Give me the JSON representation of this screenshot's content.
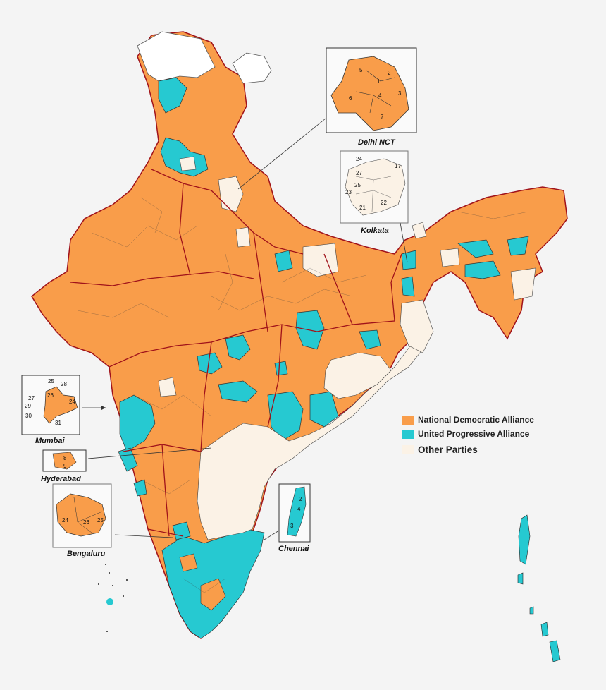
{
  "colors": {
    "nda": "#f99d4a",
    "upa": "#26c9d1",
    "other": "#fbf2e6",
    "no_data": "#ffffff",
    "state_border": "#a0121a",
    "district_border": "#3a3a3a",
    "background": "#f4f4f4"
  },
  "legend": [
    {
      "label": "National Democratic Alliance",
      "color_key": "nda"
    },
    {
      "label": "United Progressive Alliance",
      "color_key": "upa"
    },
    {
      "label": "Other Parties",
      "color_key": "other"
    }
  ],
  "insets": {
    "delhi": {
      "caption": "Delhi NCT",
      "numbers": [
        "5",
        "2",
        "1",
        "6",
        "4",
        "3",
        "7"
      ]
    },
    "kolkata": {
      "caption": "Kolkata",
      "numbers": [
        "24",
        "17",
        "27",
        "25",
        "23",
        "21",
        "22"
      ]
    },
    "mumbai": {
      "caption": "Mumbai",
      "numbers": [
        "25",
        "28",
        "27",
        "26",
        "29",
        "24",
        "30",
        "31"
      ]
    },
    "hyderabad": {
      "caption": "Hyderabad",
      "numbers": [
        "8",
        "9"
      ]
    },
    "bengaluru": {
      "caption": "Bengaluru",
      "numbers": [
        "24",
        "26",
        "25"
      ]
    },
    "chennai": {
      "caption": "Chennai",
      "numbers": [
        "2",
        "4",
        "3"
      ]
    }
  }
}
